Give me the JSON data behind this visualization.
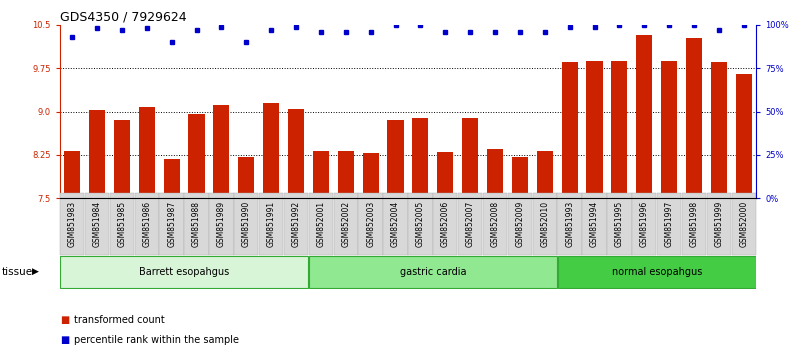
{
  "title": "GDS4350 / 7929624",
  "samples": [
    "GSM851983",
    "GSM851984",
    "GSM851985",
    "GSM851986",
    "GSM851987",
    "GSM851988",
    "GSM851989",
    "GSM851990",
    "GSM851991",
    "GSM851992",
    "GSM852001",
    "GSM852002",
    "GSM852003",
    "GSM852004",
    "GSM852005",
    "GSM852006",
    "GSM852007",
    "GSM852008",
    "GSM852009",
    "GSM852010",
    "GSM851993",
    "GSM851994",
    "GSM851995",
    "GSM851996",
    "GSM851997",
    "GSM851998",
    "GSM851999",
    "GSM852000"
  ],
  "bar_values": [
    8.32,
    9.02,
    8.85,
    9.08,
    8.18,
    8.95,
    9.12,
    8.22,
    9.14,
    9.05,
    8.32,
    8.32,
    8.28,
    8.85,
    8.88,
    8.3,
    8.88,
    8.35,
    8.22,
    8.32,
    9.85,
    9.88,
    9.87,
    10.32,
    9.88,
    10.28,
    9.85,
    9.65
  ],
  "dot_pcts": [
    93,
    98,
    97,
    98,
    90,
    97,
    99,
    90,
    97,
    99,
    96,
    96,
    96,
    100,
    100,
    96,
    96,
    96,
    96,
    96,
    99,
    99,
    100,
    100,
    100,
    100,
    97,
    100
  ],
  "groups": [
    {
      "label": "Barrett esopahgus",
      "start": 0,
      "end": 10,
      "color": "#d8f5d8"
    },
    {
      "label": "gastric cardia",
      "start": 10,
      "end": 20,
      "color": "#90e890"
    },
    {
      "label": "normal esopahgus",
      "start": 20,
      "end": 28,
      "color": "#44cc44"
    }
  ],
  "group_edge_color": "#33aa33",
  "bar_color": "#cc2200",
  "dot_color": "#0000cc",
  "ymin": 7.5,
  "ymax": 10.5,
  "ylim_right": [
    0,
    100
  ],
  "yticks_left": [
    7.5,
    8.25,
    9.0,
    9.75,
    10.5
  ],
  "yticks_right": [
    0,
    25,
    50,
    75,
    100
  ],
  "legend_bar": "transformed count",
  "legend_dot": "percentile rank within the sample",
  "tissue_label": "tissue",
  "title_fontsize": 9,
  "tick_fontsize": 6,
  "xtick_fontsize": 5.5,
  "group_fontsize": 7,
  "legend_fontsize": 7
}
